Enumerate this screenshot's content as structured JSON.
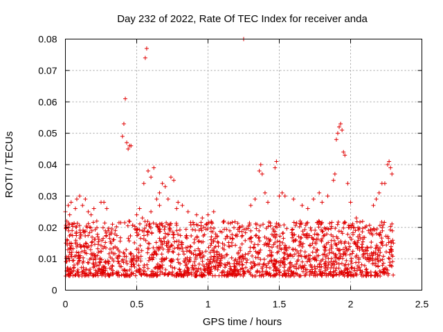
{
  "chart_data": {
    "type": "scatter",
    "title": "Day 232 of 2022, Rate Of TEC Index for receiver anda",
    "xlabel": "GPS time / hours",
    "ylabel": "ROTI / TECUs",
    "xlim": [
      0,
      2.5
    ],
    "ylim": [
      0,
      0.08
    ],
    "xticks": [
      0,
      0.5,
      1,
      1.5,
      2,
      2.5
    ],
    "xtick_labels": [
      "0",
      "0.5",
      "1",
      "1.5",
      "2",
      "2.5"
    ],
    "yticks": [
      0,
      0.01,
      0.02,
      0.03,
      0.04,
      0.05,
      0.06,
      0.07,
      0.08
    ],
    "ytick_labels": [
      "0",
      "0.01",
      "0.02",
      "0.03",
      "0.04",
      "0.05",
      "0.06",
      "0.07",
      "0.08"
    ],
    "grid": true,
    "marker": "plus",
    "color": "#e00000",
    "points": [
      [
        0.0,
        0.025
      ],
      [
        0.01,
        0.022
      ],
      [
        0.02,
        0.027
      ],
      [
        0.03,
        0.024
      ],
      [
        0.04,
        0.028
      ],
      [
        0.05,
        0.021
      ],
      [
        0.07,
        0.026
      ],
      [
        0.08,
        0.029
      ],
      [
        0.1,
        0.03
      ],
      [
        0.12,
        0.027
      ],
      [
        0.14,
        0.029
      ],
      [
        0.16,
        0.025
      ],
      [
        0.18,
        0.024
      ],
      [
        0.2,
        0.026
      ],
      [
        0.22,
        0.022
      ],
      [
        0.25,
        0.028
      ],
      [
        0.27,
        0.028
      ],
      [
        0.29,
        0.026
      ],
      [
        0.33,
        0.021
      ],
      [
        0.35,
        0.019
      ],
      [
        0.4,
        0.049
      ],
      [
        0.41,
        0.053
      ],
      [
        0.42,
        0.061
      ],
      [
        0.43,
        0.047
      ],
      [
        0.44,
        0.045
      ],
      [
        0.45,
        0.046
      ],
      [
        0.46,
        0.046
      ],
      [
        0.55,
        0.034
      ],
      [
        0.56,
        0.074
      ],
      [
        0.57,
        0.077
      ],
      [
        0.58,
        0.038
      ],
      [
        0.6,
        0.036
      ],
      [
        0.62,
        0.039
      ],
      [
        0.64,
        0.029
      ],
      [
        0.66,
        0.031
      ],
      [
        0.68,
        0.034
      ],
      [
        0.7,
        0.033
      ],
      [
        0.74,
        0.036
      ],
      [
        0.76,
        0.035
      ],
      [
        0.79,
        0.028
      ],
      [
        0.82,
        0.027
      ],
      [
        0.5,
        0.024
      ],
      [
        0.52,
        0.026
      ],
      [
        0.54,
        0.023
      ],
      [
        0.6,
        0.025
      ],
      [
        0.66,
        0.027
      ],
      [
        0.72,
        0.029
      ],
      [
        0.78,
        0.026
      ],
      [
        0.86,
        0.025
      ],
      [
        0.92,
        0.024
      ],
      [
        0.96,
        0.023
      ],
      [
        1.0,
        0.024
      ],
      [
        1.04,
        0.025
      ],
      [
        1.25,
        0.08
      ],
      [
        1.3,
        0.027
      ],
      [
        1.33,
        0.029
      ],
      [
        1.36,
        0.038
      ],
      [
        1.37,
        0.04
      ],
      [
        1.38,
        0.037
      ],
      [
        1.4,
        0.031
      ],
      [
        1.42,
        0.028
      ],
      [
        1.47,
        0.039
      ],
      [
        1.48,
        0.041
      ],
      [
        1.5,
        0.03
      ],
      [
        1.52,
        0.031
      ],
      [
        1.54,
        0.03
      ],
      [
        1.6,
        0.029
      ],
      [
        1.66,
        0.027
      ],
      [
        1.7,
        0.026
      ],
      [
        1.74,
        0.029
      ],
      [
        1.78,
        0.031
      ],
      [
        1.8,
        0.028
      ],
      [
        1.84,
        0.03
      ],
      [
        1.88,
        0.035
      ],
      [
        1.89,
        0.037
      ],
      [
        1.9,
        0.048
      ],
      [
        1.91,
        0.05
      ],
      [
        1.92,
        0.052
      ],
      [
        1.93,
        0.053
      ],
      [
        1.94,
        0.051
      ],
      [
        1.95,
        0.044
      ],
      [
        1.96,
        0.043
      ],
      [
        1.98,
        0.034
      ],
      [
        2.0,
        0.028
      ],
      [
        2.04,
        0.023
      ],
      [
        2.16,
        0.027
      ],
      [
        2.18,
        0.029
      ],
      [
        2.2,
        0.031
      ],
      [
        2.22,
        0.034
      ],
      [
        2.24,
        0.034
      ],
      [
        2.26,
        0.04
      ],
      [
        2.27,
        0.041
      ],
      [
        2.28,
        0.039
      ],
      [
        2.29,
        0.037
      ],
      [
        2.3,
        0.015
      ]
    ]
  }
}
